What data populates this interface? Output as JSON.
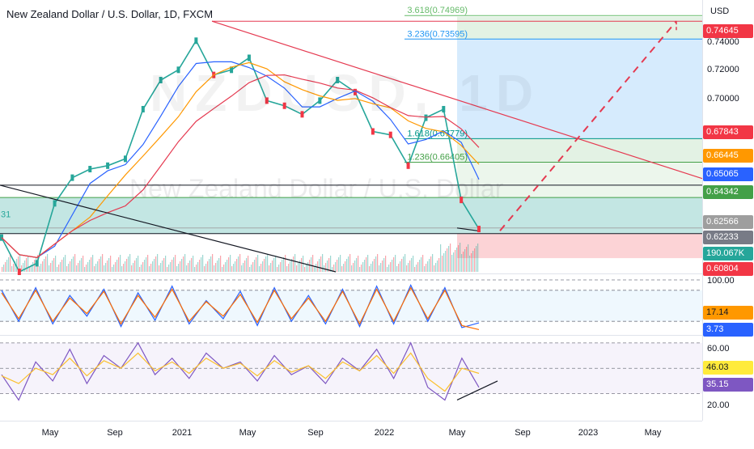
{
  "header": {
    "title": "New Zealand Dollar / U.S. Dollar, 1D, FXCM",
    "currency": "USD",
    "watermark_symbol": "NZDUSD, 1D",
    "watermark_name": "New Zealand Dollar / U.S. Dollar"
  },
  "chart_data": [
    {
      "type": "line",
      "title": "New Zealand Dollar / U.S. Dollar, 1D, FXCM",
      "ylabel": "USD",
      "x_tick_labels": [
        "May",
        "Sep",
        "2021",
        "May",
        "Sep",
        "2022",
        "May",
        "Sep",
        "2023",
        "May"
      ],
      "y_tick_labels": [
        "0.74000",
        "0.72000",
        "0.70000"
      ],
      "ylim": [
        0.6,
        0.755
      ],
      "price_series": {
        "name": "NZDUSD",
        "x": [
          "2020-03",
          "2020-04",
          "2020-05",
          "2020-06",
          "2020-07",
          "2020-08",
          "2020-09",
          "2020-10",
          "2020-11",
          "2020-12",
          "2021-01",
          "2021-02",
          "2021-03",
          "2021-04",
          "2021-05",
          "2021-06",
          "2021-07",
          "2021-08",
          "2021-09",
          "2021-10",
          "2021-11",
          "2021-12",
          "2022-01",
          "2022-02",
          "2022-03",
          "2022-04",
          "2022-05",
          "2022-05-late"
        ],
        "values": [
          0.62,
          0.6,
          0.605,
          0.64,
          0.655,
          0.66,
          0.662,
          0.666,
          0.695,
          0.712,
          0.718,
          0.735,
          0.715,
          0.718,
          0.725,
          0.7,
          0.697,
          0.692,
          0.7,
          0.712,
          0.705,
          0.682,
          0.68,
          0.662,
          0.69,
          0.695,
          0.642,
          0.625
        ]
      },
      "price_labels": [
        {
          "value": "0.74645",
          "color": "#f23645"
        },
        {
          "value": "0.67843",
          "color": "#f23645"
        },
        {
          "value": "0.66445",
          "color": "#ff9800"
        },
        {
          "value": "0.65065",
          "color": "#2962ff"
        },
        {
          "value": "0.64342",
          "color": "#43a047"
        },
        {
          "value": "0.62566",
          "color": "#9e9e9e"
        },
        {
          "value": "0.62233",
          "color": "#787b86"
        },
        {
          "value": "190.067K",
          "color": "#26a69a"
        },
        {
          "value": "0.60804",
          "color": "#f23645"
        }
      ],
      "fib_levels": [
        {
          "label": "3.618(0.74969)",
          "value": 0.74969,
          "color": "#66bb6a"
        },
        {
          "label": "3.236(0.73595)",
          "value": 0.73595,
          "color": "#2196f3"
        },
        {
          "label": "1.618(0.67779)",
          "value": 0.67779,
          "color": "#009688"
        },
        {
          "label": "1.236(0.66405)",
          "value": 0.66405,
          "color": "#43a047"
        }
      ],
      "left_edge_label": "31",
      "trendline_color": "#e53950",
      "projection_color": "#e53950"
    },
    {
      "type": "line",
      "title": "",
      "y_tick_labels": [
        "100.00"
      ],
      "ylim": [
        0,
        100
      ],
      "series": [
        {
          "values": [
            80,
            20,
            85,
            15,
            70,
            30,
            82,
            10,
            75,
            22,
            88,
            15,
            60,
            25,
            78,
            12,
            85,
            20,
            70,
            15,
            82,
            10,
            88,
            15,
            90,
            20,
            85,
            8,
            17
          ]
        },
        {
          "values": [
            75,
            25,
            80,
            20,
            65,
            35,
            78,
            15,
            70,
            28,
            82,
            20,
            58,
            30,
            72,
            18,
            80,
            25,
            65,
            20,
            78,
            15,
            82,
            20,
            85,
            25,
            80,
            12,
            4
          ]
        }
      ],
      "value_labels": [
        {
          "value": "17.14",
          "color": "#ff9800"
        },
        {
          "value": "3.73",
          "color": "#2962ff"
        }
      ]
    },
    {
      "type": "line",
      "title": "",
      "y_tick_labels": [
        "60.00",
        "20.00"
      ],
      "ylim": [
        10,
        75
      ],
      "series": [
        {
          "values": [
            45,
            25,
            55,
            40,
            65,
            38,
            60,
            50,
            70,
            45,
            58,
            42,
            62,
            50,
            55,
            40,
            60,
            45,
            52,
            38,
            58,
            48,
            65,
            42,
            70,
            35,
            25,
            58,
            35
          ]
        },
        {
          "values": [
            44,
            38,
            50,
            45,
            58,
            44,
            56,
            50,
            62,
            48,
            55,
            46,
            58,
            50,
            54,
            44,
            56,
            47,
            52,
            42,
            55,
            48,
            60,
            46,
            62,
            42,
            32,
            50,
            46
          ]
        }
      ],
      "value_labels": [
        {
          "value": "46.03",
          "color": "#ffeb3b"
        },
        {
          "value": "35.15",
          "color": "#7e57c2"
        }
      ]
    }
  ]
}
